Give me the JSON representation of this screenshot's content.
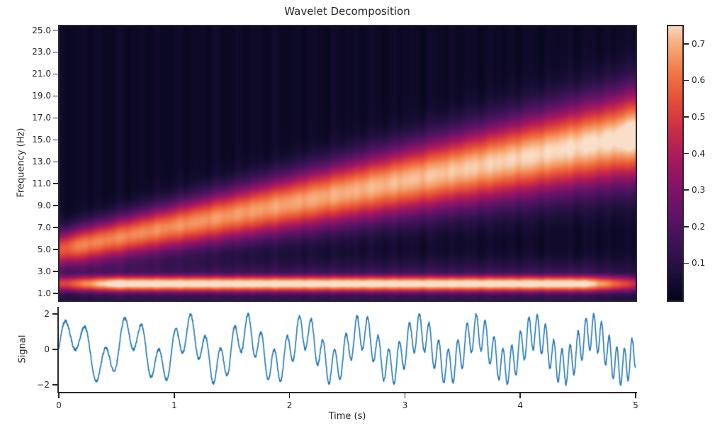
{
  "title": "Wavelet Decomposition",
  "scalogram": {
    "ylabel": "Frequency (Hz)",
    "ytick_labels": [
      "25.0",
      "23.0",
      "21.0",
      "19.0",
      "17.0",
      "15.0",
      "13.0",
      "11.0",
      "9.0",
      "7.0",
      "5.0",
      "3.0",
      "1.0"
    ],
    "ytick_values": [
      25,
      23,
      21,
      19,
      17,
      15,
      13,
      11,
      9,
      7,
      5,
      3,
      1
    ],
    "freq_axis_top_hz": 25.42,
    "freq_axis_span_hz": 25.0
  },
  "colorbar": {
    "tick_labels": [
      "0.7",
      "0.6",
      "0.5",
      "0.4",
      "0.3",
      "0.2",
      "0.1"
    ],
    "tick_values": [
      0.7,
      0.6,
      0.5,
      0.4,
      0.3,
      0.2,
      0.1
    ],
    "vmin": 0,
    "vmax": 0.75,
    "colormap": "rocket",
    "stops": [
      [
        0,
        "#03051A"
      ],
      [
        0.1,
        "#1F103D"
      ],
      [
        0.2,
        "#3E1355"
      ],
      [
        0.3,
        "#5F1365"
      ],
      [
        0.4,
        "#841466"
      ],
      [
        0.5,
        "#A81A5B"
      ],
      [
        0.6,
        "#CA2D47"
      ],
      [
        0.7,
        "#E44C39"
      ],
      [
        0.8,
        "#F17645"
      ],
      [
        0.9,
        "#F6AB79"
      ],
      [
        1,
        "#FAEBDD"
      ]
    ]
  },
  "signal_panel": {
    "ylabel": "Signal",
    "xlabel": "Time (s)",
    "ytick_labels": [
      "2",
      "0",
      "−2"
    ],
    "ytick_values": [
      2,
      0,
      -2
    ],
    "ylim": [
      -2.4,
      2.4
    ],
    "xtick_labels": [
      "0",
      "1",
      "2",
      "3",
      "4",
      "5"
    ],
    "xtick_values": [
      0,
      1,
      2,
      3,
      4,
      5
    ],
    "xlim": [
      0,
      5
    ],
    "line_color": "#1f77b4"
  },
  "chart_data": [
    {
      "type": "heatmap",
      "title": "Wavelet Decomposition",
      "xlabel": "Time (s)",
      "ylabel": "Frequency (Hz)",
      "x_range": [
        0,
        5
      ],
      "y_range": [
        1,
        25
      ],
      "value_range": [
        0,
        0.75
      ],
      "colormap": "rocket",
      "components": [
        {
          "name": "linear-chirp-ridge",
          "freq_start_hz": 5.15,
          "freq_sweep_hz_per_s": 2.08,
          "t_samples": [
            0,
            1,
            2,
            3,
            4,
            5
          ],
          "ridge_freq_hz": [
            5.15,
            7.23,
            9.31,
            11.39,
            13.47,
            15.55
          ],
          "ridge_value": [
            0.6,
            0.63,
            0.66,
            0.69,
            0.72,
            0.75
          ],
          "bandwidth_sigma_hz": "0.30 + 0.16*f",
          "left_edge_taper": 0.85,
          "right_edge_boost": 0.05
        },
        {
          "name": "constant-band",
          "freq_hz": 2.0,
          "peak_value": 0.78,
          "bandwidth_sigma_hz": 0.55,
          "skirt_sigma_hz": 1.3,
          "skirt_level": 0.22,
          "edge_taper_left": 0.58,
          "edge_taper_right": 0.55
        },
        {
          "name": "background-floor",
          "value": 0.028,
          "vertical_striation_amplitude": 0.016
        }
      ]
    },
    {
      "type": "line",
      "name": "signal",
      "x_range": [
        0,
        5
      ],
      "ylim": [
        -2.4,
        2.4
      ],
      "n_points": 2500,
      "components": [
        {
          "kind": "sine",
          "freq_hz": 2.0,
          "amplitude": 1.0
        },
        {
          "kind": "chirp",
          "freq_start_hz": 5.15,
          "freq_sweep_hz_per_s": 2.08,
          "amplitude": 1.0
        },
        {
          "kind": "noise",
          "amplitude": 0.08
        }
      ]
    }
  ]
}
